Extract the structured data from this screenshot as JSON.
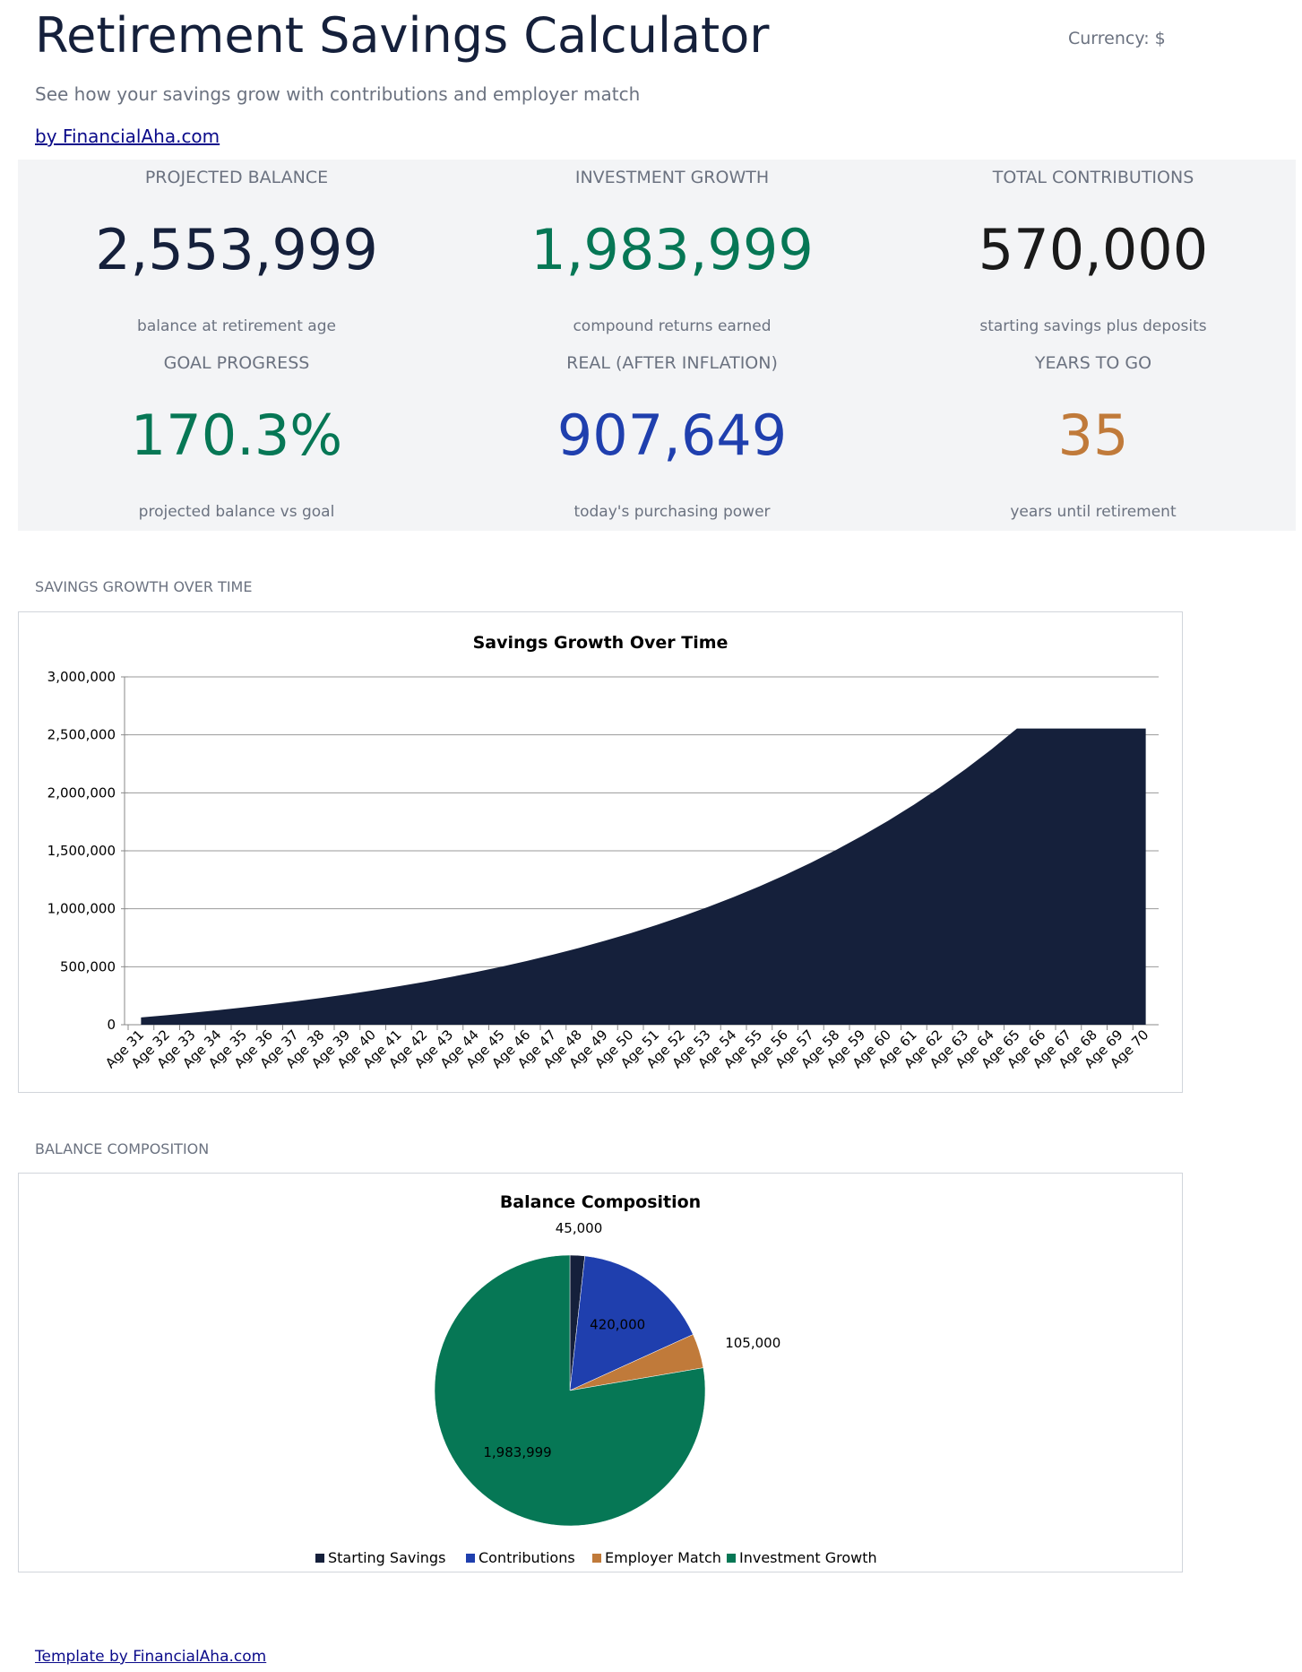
{
  "header": {
    "title": "Retirement Savings Calculator",
    "currency": "Currency: $",
    "subtitle": "See how your savings grow with contributions and employer match",
    "byline": "by FinancialAha.com"
  },
  "kpis": [
    {
      "label": "PROJECTED BALANCE",
      "value": "2,553,999",
      "note": "balance at retirement age",
      "color": "#15203b"
    },
    {
      "label": "INVESTMENT GROWTH",
      "value": "1,983,999",
      "note": "compound returns earned",
      "color": "#067755"
    },
    {
      "label": "TOTAL CONTRIBUTIONS",
      "value": "570,000",
      "note": "starting savings plus deposits",
      "color": "#1a1a1a"
    },
    {
      "label": "GOAL PROGRESS",
      "value": "170.3%",
      "note": "projected balance vs goal",
      "color": "#067755"
    },
    {
      "label": "REAL (AFTER INFLATION)",
      "value": "907,649",
      "note": "today's purchasing power",
      "color": "#1f3fae"
    },
    {
      "label": "YEARS TO GO",
      "value": "35",
      "note": "years until retirement",
      "color": "#c07a3a"
    }
  ],
  "sections": [
    "SAVINGS GROWTH OVER TIME",
    "BALANCE COMPOSITION"
  ],
  "footer": "Template by FinancialAha.com",
  "chart_data": [
    {
      "type": "area",
      "title": "Savings Growth Over Time",
      "color": "#15203b",
      "grid": true,
      "categories": [
        "Age 31",
        "Age 32",
        "Age 33",
        "Age 34",
        "Age 35",
        "Age 36",
        "Age 37",
        "Age 38",
        "Age 39",
        "Age 40",
        "Age 41",
        "Age 42",
        "Age 43",
        "Age 44",
        "Age 45",
        "Age 46",
        "Age 47",
        "Age 48",
        "Age 49",
        "Age 50",
        "Age 51",
        "Age 52",
        "Age 53",
        "Age 54",
        "Age 55",
        "Age 56",
        "Age 57",
        "Age 58",
        "Age 59",
        "Age 60",
        "Age 61",
        "Age 62",
        "Age 63",
        "Age 64",
        "Age 65",
        "Age 66",
        "Age 67",
        "Age 68",
        "Age 69",
        "Age 70"
      ],
      "values": [
        63150,
        82571,
        103350,
        125585,
        149376,
        174832,
        202070,
        231215,
        262400,
        295768,
        331472,
        369675,
        410552,
        454291,
        501091,
        551167,
        604749,
        662081,
        723427,
        789067,
        859302,
        934453,
        1014865,
        1100906,
        1192969,
        1291477,
        1396880,
        1509662,
        1630338,
        1759462,
        1897624,
        2045458,
        2203640,
        2372895,
        2553999,
        2553999,
        2553999,
        2553999,
        2553999,
        2553999
      ],
      "ylim": [
        0,
        3000000
      ],
      "yticks": [
        {
          "value": 0,
          "label": "0"
        },
        {
          "value": 500000,
          "label": "500,000"
        },
        {
          "value": 1000000,
          "label": "1,000,000"
        },
        {
          "value": 1500000,
          "label": "1,500,000"
        },
        {
          "value": 2000000,
          "label": "2,000,000"
        },
        {
          "value": 2500000,
          "label": "2,500,000"
        },
        {
          "value": 3000000,
          "label": "3,000,000"
        }
      ]
    },
    {
      "type": "pie",
      "title": "Balance Composition",
      "categories": [
        "Starting Savings",
        "Contributions",
        "Employer Match",
        "Investment Growth"
      ],
      "values": [
        45000,
        420000,
        105000,
        1983999
      ],
      "value_labels": [
        "45,000",
        "420,000",
        "105,000",
        "1,983,999"
      ],
      "colors": [
        "#15203b",
        "#1f3fae",
        "#c07a3a",
        "#067755"
      ]
    }
  ]
}
